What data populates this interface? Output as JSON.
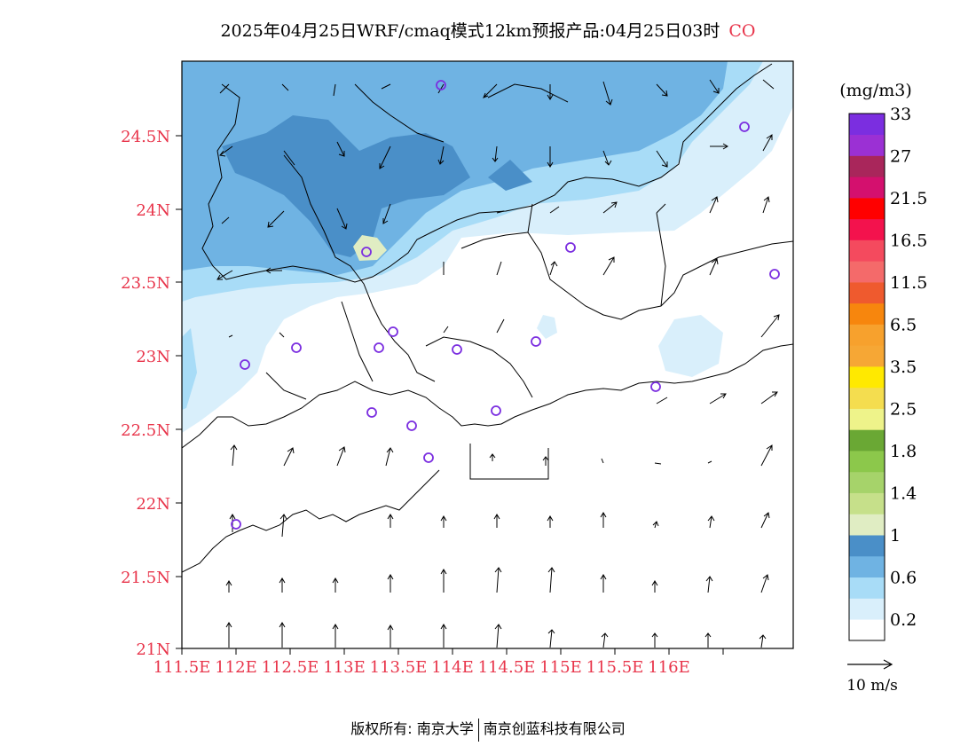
{
  "title": {
    "main": "2025年04月25日WRF/cmaq模式12km预报产品:04月25日03时",
    "species": "CO"
  },
  "axes": {
    "lat_ticks": [
      "24.5N",
      "24N",
      "23.5N",
      "23N",
      "22.5N",
      "22N",
      "21.5N",
      "21N"
    ],
    "lon_ticks": [
      "111.5E",
      "112E",
      "112.5E",
      "113E",
      "113.5E",
      "114E",
      "114.5E",
      "115E",
      "115.5E",
      "116E"
    ]
  },
  "colorbar": {
    "unit": "(mg/m3)",
    "colors": [
      "#ffffff",
      "#d9effb",
      "#a8dcf7",
      "#6fb3e3",
      "#4a8fc8",
      "#e0edc3",
      "#c6e08a",
      "#a6d36a",
      "#8cc84b",
      "#6aa834",
      "#eef38a",
      "#f4dd4f",
      "#ffe900",
      "#f6a735",
      "#f7a12d",
      "#f7860d",
      "#ef5a2e",
      "#f46a6a",
      "#f44a5e",
      "#f3124d",
      "#ff0000",
      "#d4106e",
      "#a9265b",
      "#9b30d4",
      "#7b2ee0"
    ],
    "labels": [
      "0.2",
      "0.6",
      "1",
      "1.4",
      "1.8",
      "2.5",
      "3.5",
      "6.5",
      "11.5",
      "16.5",
      "21.5",
      "27",
      "33"
    ]
  },
  "wind_legend": {
    "label": "10 m/s"
  },
  "footer": {
    "left": "版权所有: 南京大学",
    "right": "南京创蓝科技有限公司"
  }
}
